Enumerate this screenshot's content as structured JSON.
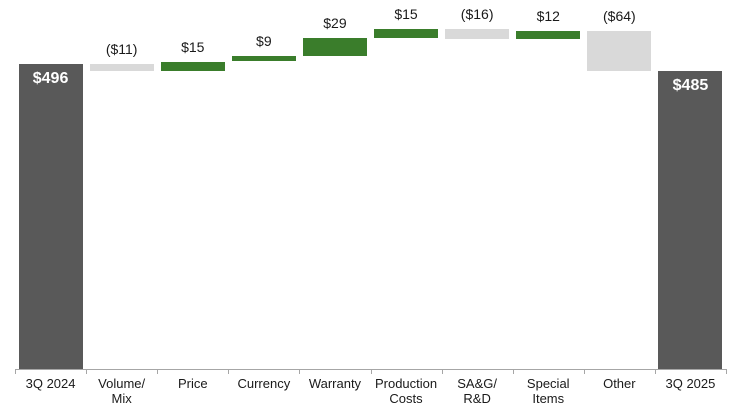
{
  "chart_data": {
    "type": "bar",
    "variant": "waterfall",
    "categories": [
      "3Q 2024",
      "Volume/Mix",
      "Price",
      "Currency",
      "Warranty",
      "Production Costs",
      "SA&G/R&D",
      "Special Items",
      "Other",
      "3Q 2025"
    ],
    "bars": [
      {
        "category": "3Q 2024",
        "category_lines": [
          "3Q 2024"
        ],
        "label": "$496",
        "value": 496,
        "start": 0,
        "end": 496,
        "kind": "total"
      },
      {
        "category": "Volume/Mix",
        "category_lines": [
          "Volume/",
          "Mix"
        ],
        "label": "($11)",
        "value": -11,
        "start": 496,
        "end": 485,
        "kind": "decrease"
      },
      {
        "category": "Price",
        "category_lines": [
          "Price"
        ],
        "label": "$15",
        "value": 15,
        "start": 485,
        "end": 500,
        "kind": "increase"
      },
      {
        "category": "Currency",
        "category_lines": [
          "Currency"
        ],
        "label": "$9",
        "value": 9,
        "start": 500,
        "end": 509,
        "kind": "increase"
      },
      {
        "category": "Warranty",
        "category_lines": [
          "Warranty"
        ],
        "label": "$29",
        "value": 29,
        "start": 509,
        "end": 538,
        "kind": "increase"
      },
      {
        "category": "Production Costs",
        "category_lines": [
          "Production",
          "Costs"
        ],
        "label": "$15",
        "value": 15,
        "start": 538,
        "end": 553,
        "kind": "increase"
      },
      {
        "category": "SA&G/R&D",
        "category_lines": [
          "SA&G/",
          "R&D"
        ],
        "label": "($16)",
        "value": -16,
        "start": 553,
        "end": 537,
        "kind": "decrease"
      },
      {
        "category": "Special Items",
        "category_lines": [
          "Special",
          "Items"
        ],
        "label": "$12",
        "value": 12,
        "start": 537,
        "end": 549,
        "kind": "increase"
      },
      {
        "category": "Other",
        "category_lines": [
          "Other"
        ],
        "label": "($64)",
        "value": -64,
        "start": 549,
        "end": 485,
        "kind": "decrease"
      },
      {
        "category": "3Q 2025",
        "category_lines": [
          "3Q 2025"
        ],
        "label": "$485",
        "value": 485,
        "start": 0,
        "end": 485,
        "kind": "total"
      }
    ],
    "ylim": [
      0,
      600
    ],
    "grid": false,
    "legend": "none",
    "xlabel": "",
    "ylabel": "",
    "colors": {
      "total": "#595959",
      "increase": "#3A7D2B",
      "decrease": "#D9D9D9",
      "axis": "#A6A6A6",
      "value_label": "#1A1A1A",
      "axis_label": "#1A1A1A",
      "total_label": "#FFFFFF",
      "background": "#FFFFFF"
    }
  }
}
